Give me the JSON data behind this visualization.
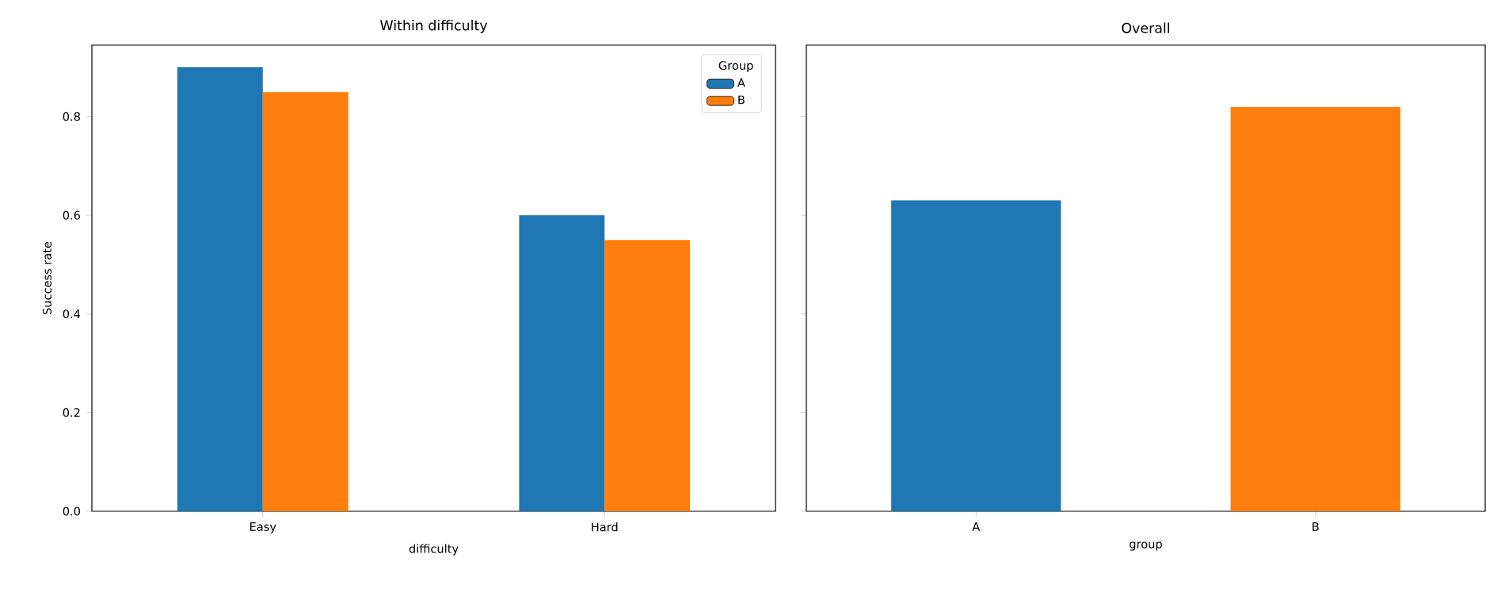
{
  "chart_data": [
    {
      "type": "bar",
      "title": "Within difficulty",
      "xlabel": "difficulty",
      "ylabel": "Success rate",
      "categories": [
        "Easy",
        "Hard"
      ],
      "series": [
        {
          "name": "A",
          "color": "#1f77b4",
          "values": [
            0.9,
            0.6
          ]
        },
        {
          "name": "B",
          "color": "#ff7f0e",
          "values": [
            0.85,
            0.55
          ]
        }
      ],
      "legend_title": "Group",
      "legend": "top right",
      "ylim": [
        0,
        0.945
      ],
      "yticks": [
        {
          "value": 0,
          "label": "0.0"
        },
        {
          "value": 0.2,
          "label": "0.2"
        },
        {
          "value": 0.4,
          "label": "0.4"
        },
        {
          "value": 0.6,
          "label": "0.6"
        },
        {
          "value": 0.8,
          "label": "0.8"
        }
      ]
    },
    {
      "type": "bar",
      "title": "Overall",
      "xlabel": "group",
      "categories": [
        "A",
        "B"
      ],
      "values": [
        0.63,
        0.82
      ],
      "colors": [
        "#1f77b4",
        "#ff7f0e"
      ],
      "ylim": [
        0,
        0.945
      ],
      "yticks": [
        0,
        0.2,
        0.4,
        0.6,
        0.8
      ],
      "tick_labels": "x"
    }
  ]
}
